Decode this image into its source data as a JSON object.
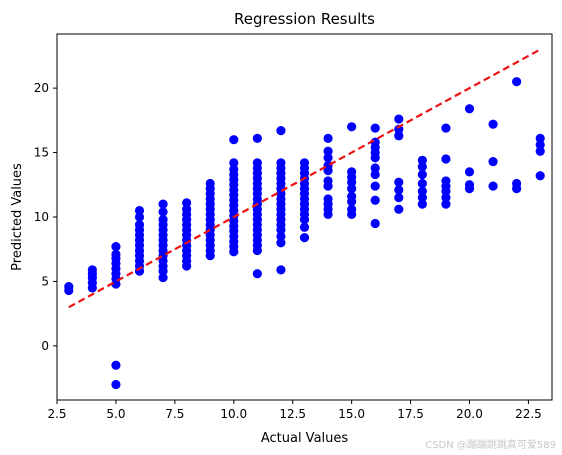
{
  "watermark": "CSDN @蹦蹦跳跳真可爱589",
  "chart_data": {
    "type": "scatter",
    "title": "Regression Results",
    "xlabel": "Actual Values",
    "ylabel": "Predicted Values",
    "xlim": [
      2.5,
      23.5
    ],
    "ylim": [
      -4.2,
      24.2
    ],
    "xticks": [
      2.5,
      5.0,
      7.5,
      10.0,
      12.5,
      15.0,
      17.5,
      20.0,
      22.5
    ],
    "xtick_labels": [
      "2.5",
      "5.0",
      "7.5",
      "10.0",
      "12.5",
      "15.0",
      "17.5",
      "20.0",
      "22.5"
    ],
    "yticks": [
      0,
      5,
      10,
      15,
      20
    ],
    "ytick_labels": [
      "0",
      "5",
      "10",
      "15",
      "20"
    ],
    "grid": false,
    "point_color": "#0000ff",
    "line_color": "#ee1111",
    "reference_line": {
      "style": "dashed",
      "x": [
        3,
        23
      ],
      "y": [
        3,
        23
      ]
    },
    "points": [
      {
        "x": 3,
        "y": 4.3
      },
      {
        "x": 3,
        "y": 4.6
      },
      {
        "x": 4,
        "y": 4.5
      },
      {
        "x": 4,
        "y": 4.9
      },
      {
        "x": 4,
        "y": 5.3
      },
      {
        "x": 4,
        "y": 5.6
      },
      {
        "x": 4,
        "y": 5.9
      },
      {
        "x": 5,
        "y": -3.0
      },
      {
        "x": 5,
        "y": -1.5
      },
      {
        "x": 5,
        "y": 4.8
      },
      {
        "x": 5,
        "y": 5.2
      },
      {
        "x": 5,
        "y": 5.6
      },
      {
        "x": 5,
        "y": 6.0
      },
      {
        "x": 5,
        "y": 6.4
      },
      {
        "x": 5,
        "y": 6.8
      },
      {
        "x": 5,
        "y": 7.1
      },
      {
        "x": 5,
        "y": 7.7
      },
      {
        "x": 6,
        "y": 5.8
      },
      {
        "x": 6,
        "y": 6.2
      },
      {
        "x": 6,
        "y": 6.6
      },
      {
        "x": 6,
        "y": 7.0
      },
      {
        "x": 6,
        "y": 7.4
      },
      {
        "x": 6,
        "y": 7.8
      },
      {
        "x": 6,
        "y": 8.2
      },
      {
        "x": 6,
        "y": 8.6
      },
      {
        "x": 6,
        "y": 9.0
      },
      {
        "x": 6,
        "y": 9.4
      },
      {
        "x": 6,
        "y": 10.0
      },
      {
        "x": 6,
        "y": 10.5
      },
      {
        "x": 7,
        "y": 5.3
      },
      {
        "x": 7,
        "y": 5.8
      },
      {
        "x": 7,
        "y": 6.2
      },
      {
        "x": 7,
        "y": 6.6
      },
      {
        "x": 7,
        "y": 7.0
      },
      {
        "x": 7,
        "y": 7.4
      },
      {
        "x": 7,
        "y": 7.8
      },
      {
        "x": 7,
        "y": 8.2
      },
      {
        "x": 7,
        "y": 8.6
      },
      {
        "x": 7,
        "y": 9.0
      },
      {
        "x": 7,
        "y": 9.4
      },
      {
        "x": 7,
        "y": 9.8
      },
      {
        "x": 7,
        "y": 10.4
      },
      {
        "x": 7,
        "y": 11.0
      },
      {
        "x": 8,
        "y": 6.2
      },
      {
        "x": 8,
        "y": 6.6
      },
      {
        "x": 8,
        "y": 7.0
      },
      {
        "x": 8,
        "y": 7.4
      },
      {
        "x": 8,
        "y": 7.8
      },
      {
        "x": 8,
        "y": 8.2
      },
      {
        "x": 8,
        "y": 8.6
      },
      {
        "x": 8,
        "y": 9.0
      },
      {
        "x": 8,
        "y": 9.4
      },
      {
        "x": 8,
        "y": 9.8
      },
      {
        "x": 8,
        "y": 10.2
      },
      {
        "x": 8,
        "y": 10.6
      },
      {
        "x": 8,
        "y": 11.1
      },
      {
        "x": 9,
        "y": 7.0
      },
      {
        "x": 9,
        "y": 7.4
      },
      {
        "x": 9,
        "y": 7.8
      },
      {
        "x": 9,
        "y": 8.2
      },
      {
        "x": 9,
        "y": 8.6
      },
      {
        "x": 9,
        "y": 9.0
      },
      {
        "x": 9,
        "y": 9.4
      },
      {
        "x": 9,
        "y": 9.8
      },
      {
        "x": 9,
        "y": 10.2
      },
      {
        "x": 9,
        "y": 10.6
      },
      {
        "x": 9,
        "y": 11.0
      },
      {
        "x": 9,
        "y": 11.4
      },
      {
        "x": 9,
        "y": 11.8
      },
      {
        "x": 9,
        "y": 12.2
      },
      {
        "x": 9,
        "y": 12.6
      },
      {
        "x": 10,
        "y": 7.3
      },
      {
        "x": 10,
        "y": 7.7
      },
      {
        "x": 10,
        "y": 8.1
      },
      {
        "x": 10,
        "y": 8.5
      },
      {
        "x": 10,
        "y": 8.9
      },
      {
        "x": 10,
        "y": 9.3
      },
      {
        "x": 10,
        "y": 9.7
      },
      {
        "x": 10,
        "y": 10.1
      },
      {
        "x": 10,
        "y": 10.5
      },
      {
        "x": 10,
        "y": 10.9
      },
      {
        "x": 10,
        "y": 11.3
      },
      {
        "x": 10,
        "y": 11.7
      },
      {
        "x": 10,
        "y": 12.1
      },
      {
        "x": 10,
        "y": 12.5
      },
      {
        "x": 10,
        "y": 12.9
      },
      {
        "x": 10,
        "y": 13.3
      },
      {
        "x": 10,
        "y": 13.7
      },
      {
        "x": 10,
        "y": 14.2
      },
      {
        "x": 10,
        "y": 16.0
      },
      {
        "x": 11,
        "y": 5.6
      },
      {
        "x": 11,
        "y": 7.4
      },
      {
        "x": 11,
        "y": 7.8
      },
      {
        "x": 11,
        "y": 8.2
      },
      {
        "x": 11,
        "y": 8.6
      },
      {
        "x": 11,
        "y": 9.0
      },
      {
        "x": 11,
        "y": 9.4
      },
      {
        "x": 11,
        "y": 9.8
      },
      {
        "x": 11,
        "y": 10.2
      },
      {
        "x": 11,
        "y": 10.6
      },
      {
        "x": 11,
        "y": 11.0
      },
      {
        "x": 11,
        "y": 11.4
      },
      {
        "x": 11,
        "y": 11.8
      },
      {
        "x": 11,
        "y": 12.2
      },
      {
        "x": 11,
        "y": 12.6
      },
      {
        "x": 11,
        "y": 13.0
      },
      {
        "x": 11,
        "y": 13.4
      },
      {
        "x": 11,
        "y": 13.8
      },
      {
        "x": 11,
        "y": 14.2
      },
      {
        "x": 11,
        "y": 16.1
      },
      {
        "x": 12,
        "y": 5.9
      },
      {
        "x": 12,
        "y": 8.0
      },
      {
        "x": 12,
        "y": 8.5
      },
      {
        "x": 12,
        "y": 9.0
      },
      {
        "x": 12,
        "y": 9.4
      },
      {
        "x": 12,
        "y": 9.8
      },
      {
        "x": 12,
        "y": 10.2
      },
      {
        "x": 12,
        "y": 10.6
      },
      {
        "x": 12,
        "y": 11.0
      },
      {
        "x": 12,
        "y": 11.4
      },
      {
        "x": 12,
        "y": 11.8
      },
      {
        "x": 12,
        "y": 12.2
      },
      {
        "x": 12,
        "y": 12.6
      },
      {
        "x": 12,
        "y": 13.0
      },
      {
        "x": 12,
        "y": 13.4
      },
      {
        "x": 12,
        "y": 13.8
      },
      {
        "x": 12,
        "y": 14.2
      },
      {
        "x": 12,
        "y": 16.7
      },
      {
        "x": 13,
        "y": 8.4
      },
      {
        "x": 13,
        "y": 9.2
      },
      {
        "x": 13,
        "y": 9.8
      },
      {
        "x": 13,
        "y": 10.2
      },
      {
        "x": 13,
        "y": 10.6
      },
      {
        "x": 13,
        "y": 11.0
      },
      {
        "x": 13,
        "y": 11.4
      },
      {
        "x": 13,
        "y": 11.8
      },
      {
        "x": 13,
        "y": 12.2
      },
      {
        "x": 13,
        "y": 12.6
      },
      {
        "x": 13,
        "y": 13.0
      },
      {
        "x": 13,
        "y": 13.4
      },
      {
        "x": 13,
        "y": 13.8
      },
      {
        "x": 13,
        "y": 14.2
      },
      {
        "x": 14,
        "y": 10.2
      },
      {
        "x": 14,
        "y": 10.6
      },
      {
        "x": 14,
        "y": 11.0
      },
      {
        "x": 14,
        "y": 11.4
      },
      {
        "x": 14,
        "y": 12.4
      },
      {
        "x": 14,
        "y": 12.8
      },
      {
        "x": 14,
        "y": 13.6
      },
      {
        "x": 14,
        "y": 14.0
      },
      {
        "x": 14,
        "y": 14.6
      },
      {
        "x": 14,
        "y": 15.1
      },
      {
        "x": 14,
        "y": 16.1
      },
      {
        "x": 15,
        "y": 10.2
      },
      {
        "x": 15,
        "y": 10.6
      },
      {
        "x": 15,
        "y": 11.2
      },
      {
        "x": 15,
        "y": 11.6
      },
      {
        "x": 15,
        "y": 12.2
      },
      {
        "x": 15,
        "y": 12.7
      },
      {
        "x": 15,
        "y": 13.1
      },
      {
        "x": 15,
        "y": 13.5
      },
      {
        "x": 15,
        "y": 17.0
      },
      {
        "x": 16,
        "y": 9.5
      },
      {
        "x": 16,
        "y": 11.3
      },
      {
        "x": 16,
        "y": 12.4
      },
      {
        "x": 16,
        "y": 13.3
      },
      {
        "x": 16,
        "y": 13.8
      },
      {
        "x": 16,
        "y": 14.6
      },
      {
        "x": 16,
        "y": 15.0
      },
      {
        "x": 16,
        "y": 15.4
      },
      {
        "x": 16,
        "y": 15.8
      },
      {
        "x": 16,
        "y": 16.9
      },
      {
        "x": 17,
        "y": 10.6
      },
      {
        "x": 17,
        "y": 11.5
      },
      {
        "x": 17,
        "y": 12.1
      },
      {
        "x": 17,
        "y": 12.7
      },
      {
        "x": 17,
        "y": 16.3
      },
      {
        "x": 17,
        "y": 16.8
      },
      {
        "x": 17,
        "y": 17.6
      },
      {
        "x": 18,
        "y": 11.0
      },
      {
        "x": 18,
        "y": 11.5
      },
      {
        "x": 18,
        "y": 12.0
      },
      {
        "x": 18,
        "y": 12.6
      },
      {
        "x": 18,
        "y": 13.3
      },
      {
        "x": 18,
        "y": 13.9
      },
      {
        "x": 18,
        "y": 14.4
      },
      {
        "x": 19,
        "y": 11.0
      },
      {
        "x": 19,
        "y": 11.5
      },
      {
        "x": 19,
        "y": 12.0
      },
      {
        "x": 19,
        "y": 12.4
      },
      {
        "x": 19,
        "y": 12.8
      },
      {
        "x": 19,
        "y": 14.5
      },
      {
        "x": 19,
        "y": 16.9
      },
      {
        "x": 20,
        "y": 12.2
      },
      {
        "x": 20,
        "y": 12.5
      },
      {
        "x": 20,
        "y": 13.5
      },
      {
        "x": 20,
        "y": 18.4
      },
      {
        "x": 21,
        "y": 12.4
      },
      {
        "x": 21,
        "y": 14.3
      },
      {
        "x": 21,
        "y": 17.2
      },
      {
        "x": 22,
        "y": 12.2
      },
      {
        "x": 22,
        "y": 12.6
      },
      {
        "x": 22,
        "y": 20.5
      },
      {
        "x": 23,
        "y": 13.2
      },
      {
        "x": 23,
        "y": 15.1
      },
      {
        "x": 23,
        "y": 15.6
      },
      {
        "x": 23,
        "y": 16.1
      }
    ]
  }
}
